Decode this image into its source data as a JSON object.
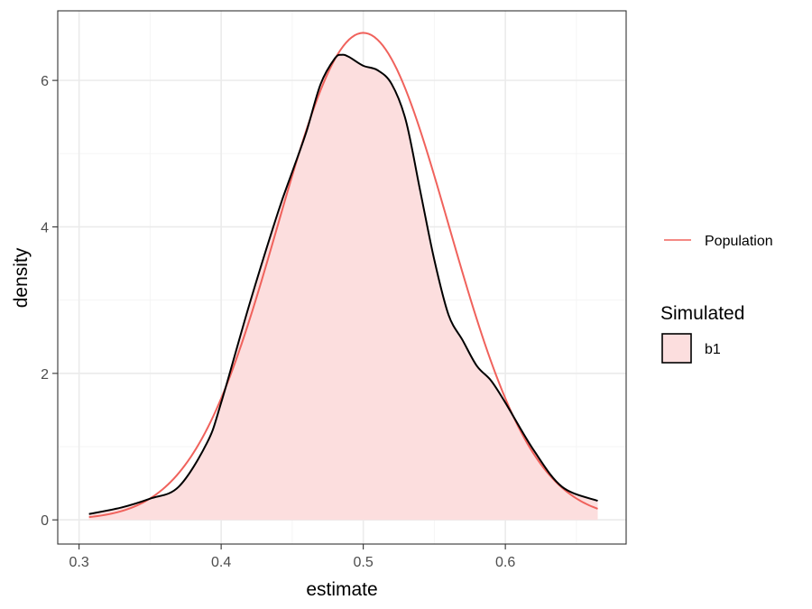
{
  "chart_data": {
    "type": "area",
    "xlabel": "estimate",
    "ylabel": "density",
    "xlim": [
      0.285,
      0.685
    ],
    "ylim": [
      -0.33,
      6.95
    ],
    "x_ticks": [
      0.3,
      0.4,
      0.5,
      0.6
    ],
    "x_tick_labels": [
      "0.3",
      "0.4",
      "0.5",
      "0.6"
    ],
    "y_ticks": [
      0,
      2,
      4,
      6
    ],
    "y_tick_labels": [
      "0",
      "2",
      "4",
      "6"
    ],
    "grid": true,
    "legend_position": "right",
    "series": [
      {
        "name": "b1",
        "role": "Simulated",
        "kind": "filled-density",
        "fill": "#fcdede",
        "stroke": "#000000",
        "x": [
          0.307,
          0.33,
          0.35,
          0.37,
          0.39,
          0.4,
          0.42,
          0.44,
          0.45,
          0.46,
          0.47,
          0.48,
          0.485,
          0.49,
          0.5,
          0.51,
          0.52,
          0.53,
          0.54,
          0.55,
          0.56,
          0.57,
          0.58,
          0.59,
          0.6,
          0.62,
          0.64,
          0.665
        ],
        "y": [
          0.08,
          0.17,
          0.29,
          0.45,
          1.05,
          1.6,
          2.95,
          4.2,
          4.75,
          5.3,
          5.95,
          6.3,
          6.35,
          6.32,
          6.2,
          6.14,
          5.95,
          5.45,
          4.5,
          3.55,
          2.8,
          2.45,
          2.1,
          1.9,
          1.6,
          0.95,
          0.45,
          0.26
        ]
      },
      {
        "name": "Population",
        "kind": "line",
        "stroke": "#f0625c",
        "mean": 0.5,
        "sd": 0.06,
        "x_range": [
          0.307,
          0.665
        ]
      }
    ],
    "legend": {
      "line_entry": "Population",
      "fill_title": "Simulated",
      "fill_entry": "b1"
    }
  },
  "colors": {
    "fill": "#fcdede",
    "simulated_line": "#000000",
    "population_line": "#f0625c",
    "grid_major": "#ebebeb",
    "grid_minor": "#f5f5f5",
    "panel_border": "#333333",
    "tick_text": "#4d4d4d"
  }
}
